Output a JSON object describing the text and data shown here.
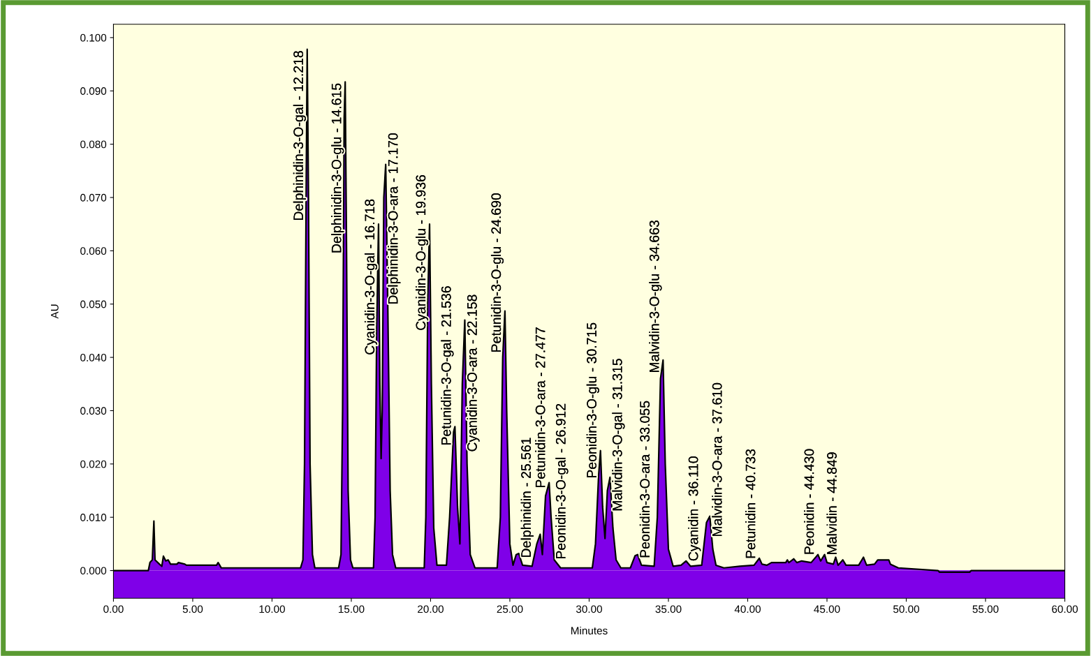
{
  "chart_data": {
    "type": "area",
    "xlabel": "Minutes",
    "ylabel": "AU",
    "xlim": [
      0,
      60
    ],
    "ylim": [
      -0.0052,
      0.1025
    ],
    "xticks": [
      {
        "value": 0,
        "label": "0.00"
      },
      {
        "value": 5,
        "label": "5.00"
      },
      {
        "value": 10,
        "label": "10.00"
      },
      {
        "value": 15,
        "label": "15.00"
      },
      {
        "value": 20,
        "label": "20.00"
      },
      {
        "value": 25,
        "label": "25.00"
      },
      {
        "value": 30,
        "label": "30.00"
      },
      {
        "value": 35,
        "label": "35.00"
      },
      {
        "value": 40,
        "label": "40.00"
      },
      {
        "value": 45,
        "label": "45.00"
      },
      {
        "value": 50,
        "label": "50.00"
      },
      {
        "value": 55,
        "label": "55.00"
      },
      {
        "value": 60,
        "label": "60.00"
      }
    ],
    "yticks": [
      {
        "value": 0,
        "label": "0.000"
      },
      {
        "value": 0.01,
        "label": "0.010"
      },
      {
        "value": 0.02,
        "label": "0.020"
      },
      {
        "value": 0.03,
        "label": "0.030"
      },
      {
        "value": 0.04,
        "label": "0.040"
      },
      {
        "value": 0.05,
        "label": "0.050"
      },
      {
        "value": 0.06,
        "label": "0.060"
      },
      {
        "value": 0.07,
        "label": "0.070"
      },
      {
        "value": 0.08,
        "label": "0.080"
      },
      {
        "value": 0.09,
        "label": "0.090"
      },
      {
        "value": 0.1,
        "label": "0.100"
      }
    ],
    "grid": false,
    "legend": false,
    "bands": [
      {
        "axis": "y",
        "from": -0.0052,
        "to": 0,
        "color": "#7f00e8"
      }
    ],
    "series": [
      {
        "color": "#7f00e8",
        "x": [
          0,
          2.2,
          2.3,
          2.45,
          2.55,
          2.62,
          2.9,
          3.05,
          3.15,
          3.3,
          3.45,
          3.6,
          4.0,
          4.1,
          4.5,
          4.6,
          6.5,
          6.6,
          6.7,
          6.8,
          11.8,
          11.95,
          12.05,
          12.15,
          12.218,
          12.3,
          12.4,
          12.55,
          12.7,
          14.2,
          14.35,
          14.45,
          14.55,
          14.615,
          14.7,
          14.8,
          14.95,
          15.1,
          16.4,
          16.5,
          16.6,
          16.718,
          16.8,
          16.88,
          16.95,
          17.05,
          17.17,
          17.3,
          17.45,
          17.6,
          17.8,
          19.6,
          19.7,
          19.82,
          19.936,
          20.05,
          20.2,
          20.4,
          21.0,
          21.2,
          21.45,
          21.536,
          21.7,
          21.85,
          22.0,
          22.158,
          22.3,
          22.5,
          22.8,
          24.2,
          24.4,
          24.55,
          24.69,
          24.8,
          25.0,
          25.2,
          25.4,
          25.561,
          25.8,
          26.4,
          26.7,
          26.912,
          27.05,
          27.25,
          27.477,
          27.6,
          27.8,
          28.2,
          30.2,
          30.4,
          30.6,
          30.715,
          30.85,
          31.0,
          31.15,
          31.315,
          31.5,
          31.7,
          32.0,
          32.6,
          32.9,
          33.055,
          33.3,
          34.1,
          34.3,
          34.5,
          34.663,
          34.8,
          35.0,
          35.3,
          35.8,
          36.11,
          36.4,
          37.1,
          37.4,
          37.61,
          37.8,
          38.0,
          38.5,
          39.5,
          40.4,
          40.733,
          40.9,
          41.2,
          41.5,
          42.4,
          42.5,
          42.6,
          42.9,
          43.1,
          43.4,
          44.0,
          44.43,
          44.6,
          44.849,
          45.0,
          45.4,
          45.55,
          45.7,
          46.0,
          46.2,
          47.0,
          47.3,
          47.5,
          48.0,
          48.2,
          48.9,
          49.0,
          49.5,
          52.0,
          52.1,
          54.0,
          54.1,
          60
        ],
        "values": [
          0,
          0,
          0.0015,
          0.002,
          0.0093,
          0.002,
          0.0012,
          0.0008,
          0.0027,
          0.0018,
          0.002,
          0.0012,
          0.0012,
          0.0015,
          0.0012,
          0.001,
          0.001,
          0.0015,
          0.001,
          0.0005,
          0.0005,
          0.002,
          0.02,
          0.07,
          0.0978,
          0.07,
          0.02,
          0.003,
          0.0005,
          0.0005,
          0.003,
          0.03,
          0.085,
          0.0917,
          0.06,
          0.015,
          0.002,
          0.0005,
          0.0005,
          0.01,
          0.045,
          0.065,
          0.035,
          0.021,
          0.03,
          0.07,
          0.0762,
          0.05,
          0.015,
          0.003,
          0.0005,
          0.0005,
          0.01,
          0.05,
          0.065,
          0.035,
          0.008,
          0.001,
          0.001,
          0.01,
          0.026,
          0.027,
          0.012,
          0.005,
          0.035,
          0.047,
          0.02,
          0.003,
          0.0005,
          0.0005,
          0.01,
          0.04,
          0.0487,
          0.03,
          0.005,
          0.001,
          0.003,
          0.0032,
          0.001,
          0.0008,
          0.005,
          0.0068,
          0.003,
          0.014,
          0.0165,
          0.01,
          0.002,
          0.0005,
          0.0005,
          0.005,
          0.018,
          0.0225,
          0.012,
          0.006,
          0.015,
          0.0175,
          0.008,
          0.002,
          0.0005,
          0.0005,
          0.0028,
          0.003,
          0.001,
          0.0008,
          0.01,
          0.036,
          0.0395,
          0.02,
          0.004,
          0.0008,
          0.001,
          0.0018,
          0.0008,
          0.001,
          0.009,
          0.0102,
          0.004,
          0.001,
          0.0005,
          0.0008,
          0.001,
          0.0023,
          0.0012,
          0.001,
          0.0015,
          0.0015,
          0.002,
          0.0015,
          0.0022,
          0.0015,
          0.0018,
          0.0015,
          0.003,
          0.0018,
          0.003,
          0.0015,
          0.0012,
          0.0025,
          0.001,
          0.002,
          0.001,
          0.001,
          0.0025,
          0.001,
          0.0012,
          0.002,
          0.002,
          0.0012,
          0.0005,
          0,
          -0.0003,
          -0.0003,
          0,
          0
        ]
      }
    ],
    "annotations": [
      {
        "text": "Delphinidin-3-O-gal - 12.218",
        "x": 12.218,
        "y": 0.0978
      },
      {
        "text": "Delphinidin-3-O-glu - 14.615",
        "x": 14.615,
        "y": 0.0917
      },
      {
        "text": "Cyanidin-3-O-gal - 16.718",
        "x": 16.718,
        "y": 0.065
      },
      {
        "text": "Delphinidin-3-O-ara - 17.170",
        "x": 17.17,
        "y": 0.0762
      },
      {
        "text": "Cyanidin-3-O-glu - 19.936",
        "x": 19.936,
        "y": 0.065
      },
      {
        "text": "Petunidin-3-O-gal - 21.536",
        "x": 21.536,
        "y": 0.027
      },
      {
        "text": "Cyanidin-3-O-ara - 22.158",
        "x": 22.158,
        "y": 0.047
      },
      {
        "text": "Petunidin-3-O-glu - 24.690",
        "x": 24.69,
        "y": 0.0487
      },
      {
        "text": "Delphinidin - 25.561",
        "x": 25.561,
        "y": 0.0032
      },
      {
        "text": "Peonidin-3-O-gal - 26.912",
        "x": 26.912,
        "y": 0.0068
      },
      {
        "text": "Petunidin-3-O-ara - 27.477",
        "x": 27.477,
        "y": 0.0165
      },
      {
        "text": "Peonidin-3-O-glu - 30.715",
        "x": 30.715,
        "y": 0.0225
      },
      {
        "text": "Malvidin-3-O-gal - 31.315",
        "x": 31.315,
        "y": 0.0175
      },
      {
        "text": "Peonidin-3-O-ara - 33.055",
        "x": 33.055,
        "y": 0.003
      },
      {
        "text": "Malvidin-3-O-glu - 34.663",
        "x": 34.663,
        "y": 0.0395
      },
      {
        "text": "Cyanidin - 36.110",
        "x": 36.11,
        "y": 0.0018
      },
      {
        "text": "Malvidin-3-O-ara - 37.610",
        "x": 37.61,
        "y": 0.0102
      },
      {
        "text": "Petunidin - 40.733",
        "x": 40.733,
        "y": 0.0023
      },
      {
        "text": "Peonidin - 44.430",
        "x": 44.43,
        "y": 0.003
      },
      {
        "text": "Malvidin - 44.849",
        "x": 44.849,
        "y": 0.003
      }
    ]
  }
}
